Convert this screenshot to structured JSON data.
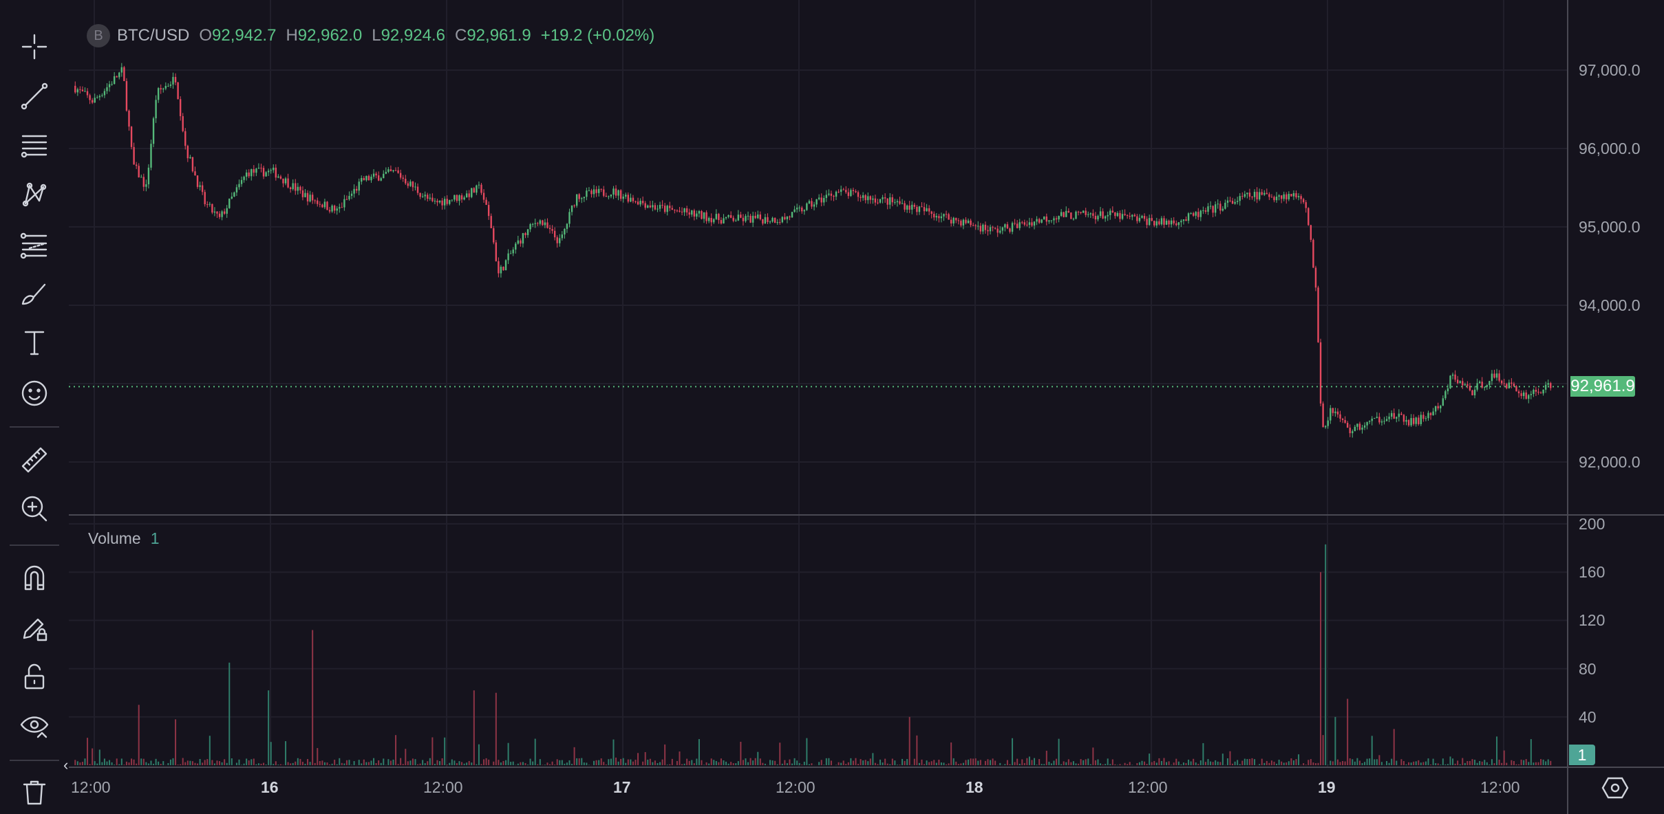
{
  "header": {
    "logo_letter": "B",
    "symbol": "BTC/USD",
    "open_label": "O",
    "open": "92,942.7",
    "high_label": "H",
    "high": "92,962.0",
    "low_label": "L",
    "low": "92,924.6",
    "close_label": "C",
    "close": "92,961.9",
    "change": "+19.2 (+0.02%)"
  },
  "toolbar": {
    "tools": [
      "crosshair-icon",
      "trend-line-icon",
      "horizontal-lines-icon",
      "pattern-icon",
      "fib-icon",
      "brush-icon",
      "text-icon",
      "emoji-icon",
      "ruler-icon",
      "zoom-in-icon",
      "magnet-icon",
      "pencil-lock-icon",
      "lock-icon",
      "eye-icon",
      "trash-icon"
    ]
  },
  "price_axis": {
    "ticks": [
      "97,000.0",
      "96,000.0",
      "95,000.0",
      "94,000.0",
      "92,000.0"
    ],
    "tick_values": [
      97000,
      96000,
      95000,
      94000,
      92000
    ],
    "current_price": "92,961.9",
    "current_value": 92961.9
  },
  "volume": {
    "label": "Volume",
    "value": "1",
    "axis_ticks": [
      "200",
      "160",
      "120",
      "80",
      "40"
    ],
    "tick_values": [
      200,
      160,
      120,
      80,
      40
    ],
    "current_badge": "1"
  },
  "time_axis": {
    "labels": [
      "12:00",
      "16",
      "12:00",
      "17",
      "12:00",
      "18",
      "12:00",
      "19",
      "12:00"
    ],
    "label_hours": [
      12,
      24,
      36,
      48,
      60,
      72,
      84,
      96,
      108
    ]
  },
  "chart_data": {
    "type": "candlestick",
    "x_unit": "hours since 15th 00:00",
    "price_path": [
      [
        10.7,
        96800
      ],
      [
        12.1,
        96600
      ],
      [
        14.1,
        97000
      ],
      [
        14.8,
        95800
      ],
      [
        15.7,
        95500
      ],
      [
        16.4,
        96700
      ],
      [
        17.7,
        96900
      ],
      [
        18.4,
        96000
      ],
      [
        19.7,
        95300
      ],
      [
        20.7,
        95100
      ],
      [
        22.6,
        95700
      ],
      [
        24.4,
        95700
      ],
      [
        26.5,
        95400
      ],
      [
        28.7,
        95200
      ],
      [
        30.5,
        95600
      ],
      [
        32.7,
        95700
      ],
      [
        35.2,
        95300
      ],
      [
        37.4,
        95400
      ],
      [
        38.5,
        95500
      ],
      [
        39.2,
        95000
      ],
      [
        39.7,
        94400
      ],
      [
        41,
        94800
      ],
      [
        42.4,
        95100
      ],
      [
        43.9,
        94800
      ],
      [
        45,
        95400
      ],
      [
        47.5,
        95450
      ],
      [
        50.4,
        95250
      ],
      [
        54.7,
        95100
      ],
      [
        59.1,
        95100
      ],
      [
        62.7,
        95450
      ],
      [
        67,
        95300
      ],
      [
        70.6,
        95100
      ],
      [
        73.5,
        94950
      ],
      [
        77.9,
        95150
      ],
      [
        81.4,
        95150
      ],
      [
        85,
        95050
      ],
      [
        86.5,
        95100
      ],
      [
        90.9,
        95400
      ],
      [
        94.5,
        95400
      ],
      [
        94.9,
        95000
      ],
      [
        95.4,
        94200
      ],
      [
        95.7,
        92800
      ],
      [
        95.9,
        92400
      ],
      [
        96.4,
        92700
      ],
      [
        97.7,
        92400
      ],
      [
        100.3,
        92600
      ],
      [
        102.1,
        92500
      ],
      [
        103.9,
        92700
      ],
      [
        104.6,
        93100
      ],
      [
        106,
        92900
      ],
      [
        107.5,
        93100
      ],
      [
        109.6,
        92850
      ],
      [
        111.3,
        92962
      ]
    ],
    "volume_spikes": [
      [
        15,
        50
      ],
      [
        17.5,
        38
      ],
      [
        21.2,
        85
      ],
      [
        23.8,
        62
      ],
      [
        26.8,
        112
      ],
      [
        37.9,
        62
      ],
      [
        39.3,
        60
      ],
      [
        95.6,
        160
      ],
      [
        95.8,
        183
      ],
      [
        96.5,
        40
      ],
      [
        97.3,
        55
      ],
      [
        100.5,
        30
      ],
      [
        67.5,
        40
      ]
    ],
    "price_range": [
      91700,
      97300
    ],
    "volume_range": [
      0,
      200
    ]
  }
}
